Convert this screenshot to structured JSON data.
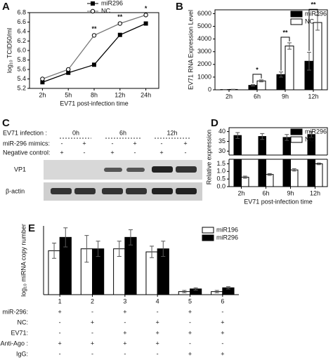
{
  "chart_data": [
    {
      "type": "line",
      "panel": "A",
      "ylabel": "log₁₀ TCID50/ml",
      "xlabel": "EV71 post-infection time",
      "categories": [
        "2h",
        "5h",
        "8h",
        "12h",
        "24h"
      ],
      "series": [
        {
          "name": "miR296",
          "color": "#000000",
          "marker": "square",
          "values": [
            5.33,
            5.53,
            5.7,
            6.33,
            6.57
          ]
        },
        {
          "name": "NC",
          "color": "#ffffff",
          "marker": "circle",
          "values": [
            5.4,
            5.6,
            6.32,
            6.57,
            6.75
          ]
        }
      ],
      "annotations": [
        null,
        null,
        "**",
        "**",
        "*"
      ],
      "ylim": [
        5.2,
        6.8
      ],
      "yticks": [
        5.2,
        5.4,
        5.6,
        5.8,
        {
          "value": 6,
          "label": "6.0"
        },
        6.2,
        6.4,
        6.6,
        6.8
      ],
      "legend": "upper center"
    },
    {
      "type": "bar",
      "panel": "B",
      "ylabel": "EV71 RNA Expression Level",
      "categories": [
        "2h",
        "6h",
        "9h",
        "12h"
      ],
      "series": [
        {
          "name": "miR296",
          "color": "#000000",
          "values": [
            20,
            350,
            1200,
            2250
          ],
          "errors": [
            10,
            60,
            200,
            700
          ]
        },
        {
          "name": "NC",
          "color": "#ffffff",
          "values": [
            30,
            700,
            3450,
            5300
          ],
          "errors": [
            10,
            80,
            250,
            600
          ]
        }
      ],
      "annotations": [
        null,
        "*",
        "**",
        "**"
      ],
      "ylim": [
        0,
        6300
      ],
      "yticks": [
        0,
        1000,
        2000,
        3000,
        4000,
        5000,
        6000
      ],
      "legend": "upper right"
    },
    {
      "type": "bar",
      "panel": "D",
      "ylabel": "Relative expression",
      "xlabel": "EV71 post-infection time",
      "categories": [
        "2h",
        "6h",
        "9h",
        "12h"
      ],
      "series": [
        {
          "name": "miR296",
          "color": "#000000",
          "values": [
            38,
            37.5,
            37,
            38.5
          ],
          "errors": [
            1.5,
            1.5,
            1.5,
            1.5
          ]
        },
        {
          "name": "NC",
          "color": "#ffffff",
          "values": [
            0.62,
            0.8,
            1.1,
            1.5
          ],
          "errors": [
            0.07,
            0.06,
            0.08,
            0.06
          ]
        }
      ],
      "ylim": [
        0,
        1.8
      ],
      "yticks": [
        {
          "value": 0,
          "label": "0.0"
        },
        0.5,
        {
          "value": 1,
          "label": "1.0"
        },
        1.5
      ],
      "ylim_upper": [
        28,
        42
      ],
      "yticks_upper": [
        30,
        35,
        40
      ],
      "legend": "upper right"
    },
    {
      "type": "bar",
      "panel": "E",
      "ylabel": "log₁₀ miRNA copy number",
      "categories": [
        "1",
        "2",
        "3",
        "4",
        "5",
        "6"
      ],
      "series": [
        {
          "name": "miR196",
          "color": "#ffffff",
          "values": [
            11.5,
            12,
            12,
            11.2,
            0.8,
            0.8
          ],
          "errors": [
            2,
            3.5,
            2,
            1.5,
            0.3,
            0.3
          ]
        },
        {
          "name": "miR296",
          "color": "#000000",
          "values": [
            15,
            12,
            15,
            12,
            1.5,
            1.8
          ],
          "errors": [
            2.5,
            2,
            2,
            2,
            0.3,
            0.3
          ]
        }
      ],
      "ylim": [
        0,
        18
      ],
      "legend": "upper right",
      "condition_rows": [
        {
          "label": "miR-296:",
          "signs": [
            "+",
            "-",
            "+",
            "-",
            "+",
            "-"
          ]
        },
        {
          "label": "NC:",
          "signs": [
            "-",
            "+",
            "-",
            "+",
            "-",
            "+"
          ]
        },
        {
          "label": "EV71:",
          "signs": [
            "-",
            "-",
            "+",
            "+",
            "+",
            "+"
          ]
        },
        {
          "label": "Anti-Ago :",
          "signs": [
            "+",
            "+",
            "+",
            "+",
            "-",
            "-"
          ]
        },
        {
          "label": "IgG:",
          "signs": [
            "-",
            "-",
            "-",
            "-",
            "+",
            "+"
          ]
        }
      ]
    }
  ],
  "blot": {
    "panel": "C",
    "infection_label": "EV71 infection :",
    "times": [
      "0h",
      "6h",
      "12h"
    ],
    "rows": [
      {
        "label": "miR-296 mimics:",
        "signs": [
          "-",
          "+",
          "-",
          "+",
          "-",
          "+"
        ]
      },
      {
        "label": "Negative control:",
        "signs": [
          "+",
          "-",
          "+",
          "-",
          "+",
          "-"
        ]
      }
    ],
    "bands": [
      "VP1",
      "β-actin"
    ]
  }
}
